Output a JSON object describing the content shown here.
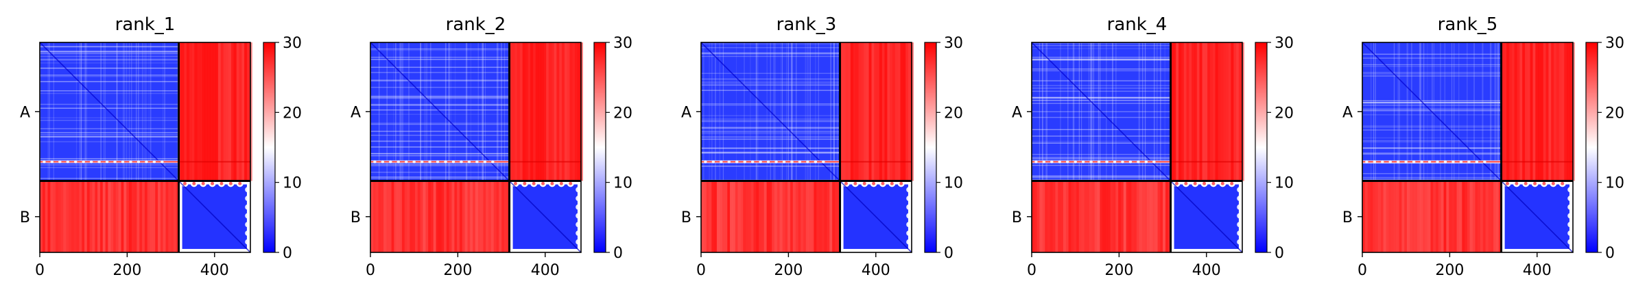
{
  "chart_data": {
    "type": "heatmap",
    "colorbar": {
      "min": 0,
      "max": 30,
      "ticks": [
        0,
        10,
        20,
        30
      ],
      "colormap": [
        "#0000ff",
        "#ffffff",
        "#ff0000"
      ]
    },
    "x_range": [
      0,
      482
    ],
    "x_ticks": [
      0,
      200,
      400
    ],
    "chain_boundary": 318,
    "y_ticklabels": [
      "A",
      "B"
    ],
    "panels": [
      {
        "title": "rank_1"
      },
      {
        "title": "rank_2"
      },
      {
        "title": "rank_3"
      },
      {
        "title": "rank_4"
      },
      {
        "title": "rank_5"
      }
    ]
  }
}
